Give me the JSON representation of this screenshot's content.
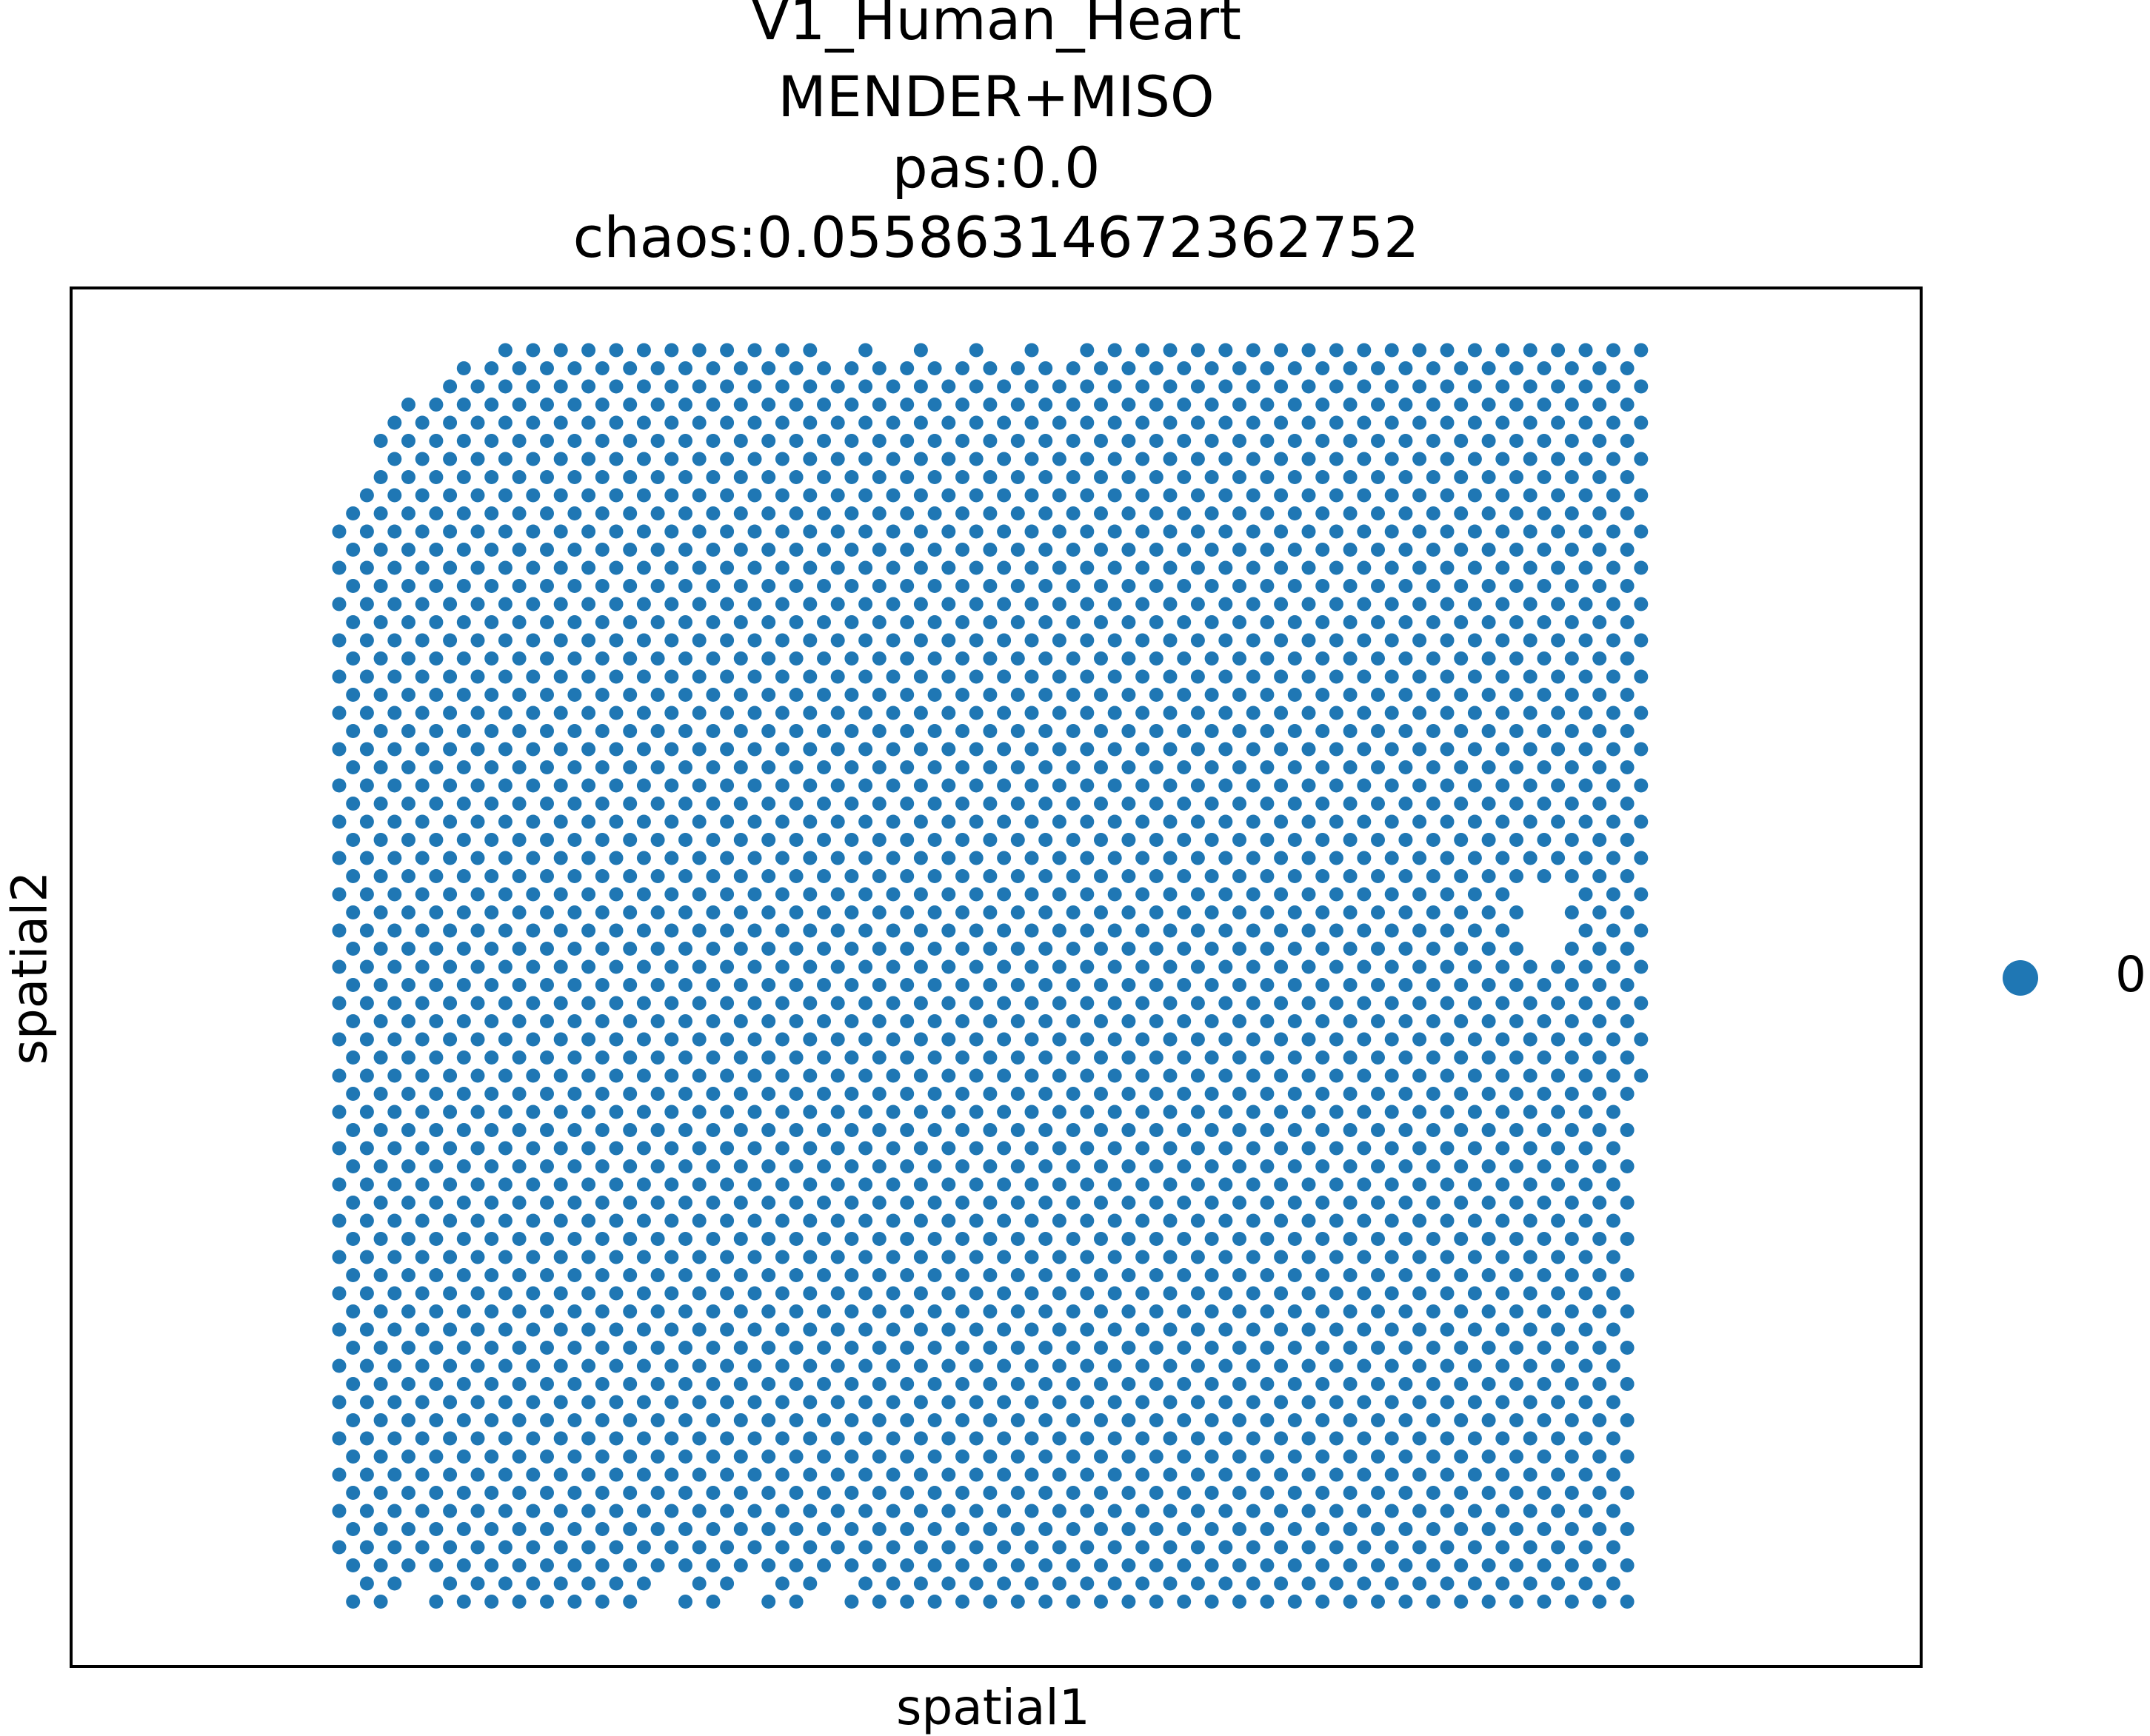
{
  "chart_data": {
    "type": "scatter",
    "title_lines": [
      "V1_Human_Heart",
      "MENDER+MISO",
      "pas:0.0",
      "chaos:0.05586314672362752"
    ],
    "xlabel": "spatial1",
    "ylabel": "spatial2",
    "grid": false,
    "legend_position": "right",
    "series": [
      {
        "name": "0",
        "color": "#1f77b4",
        "marker": "circle",
        "note_shape": "hexagonal spot lattice, ~58 columns x ~72 rows; small hole near right edge mid-height"
      }
    ],
    "legend": [
      {
        "label": "0",
        "color": "#1f77b4"
      }
    ]
  }
}
